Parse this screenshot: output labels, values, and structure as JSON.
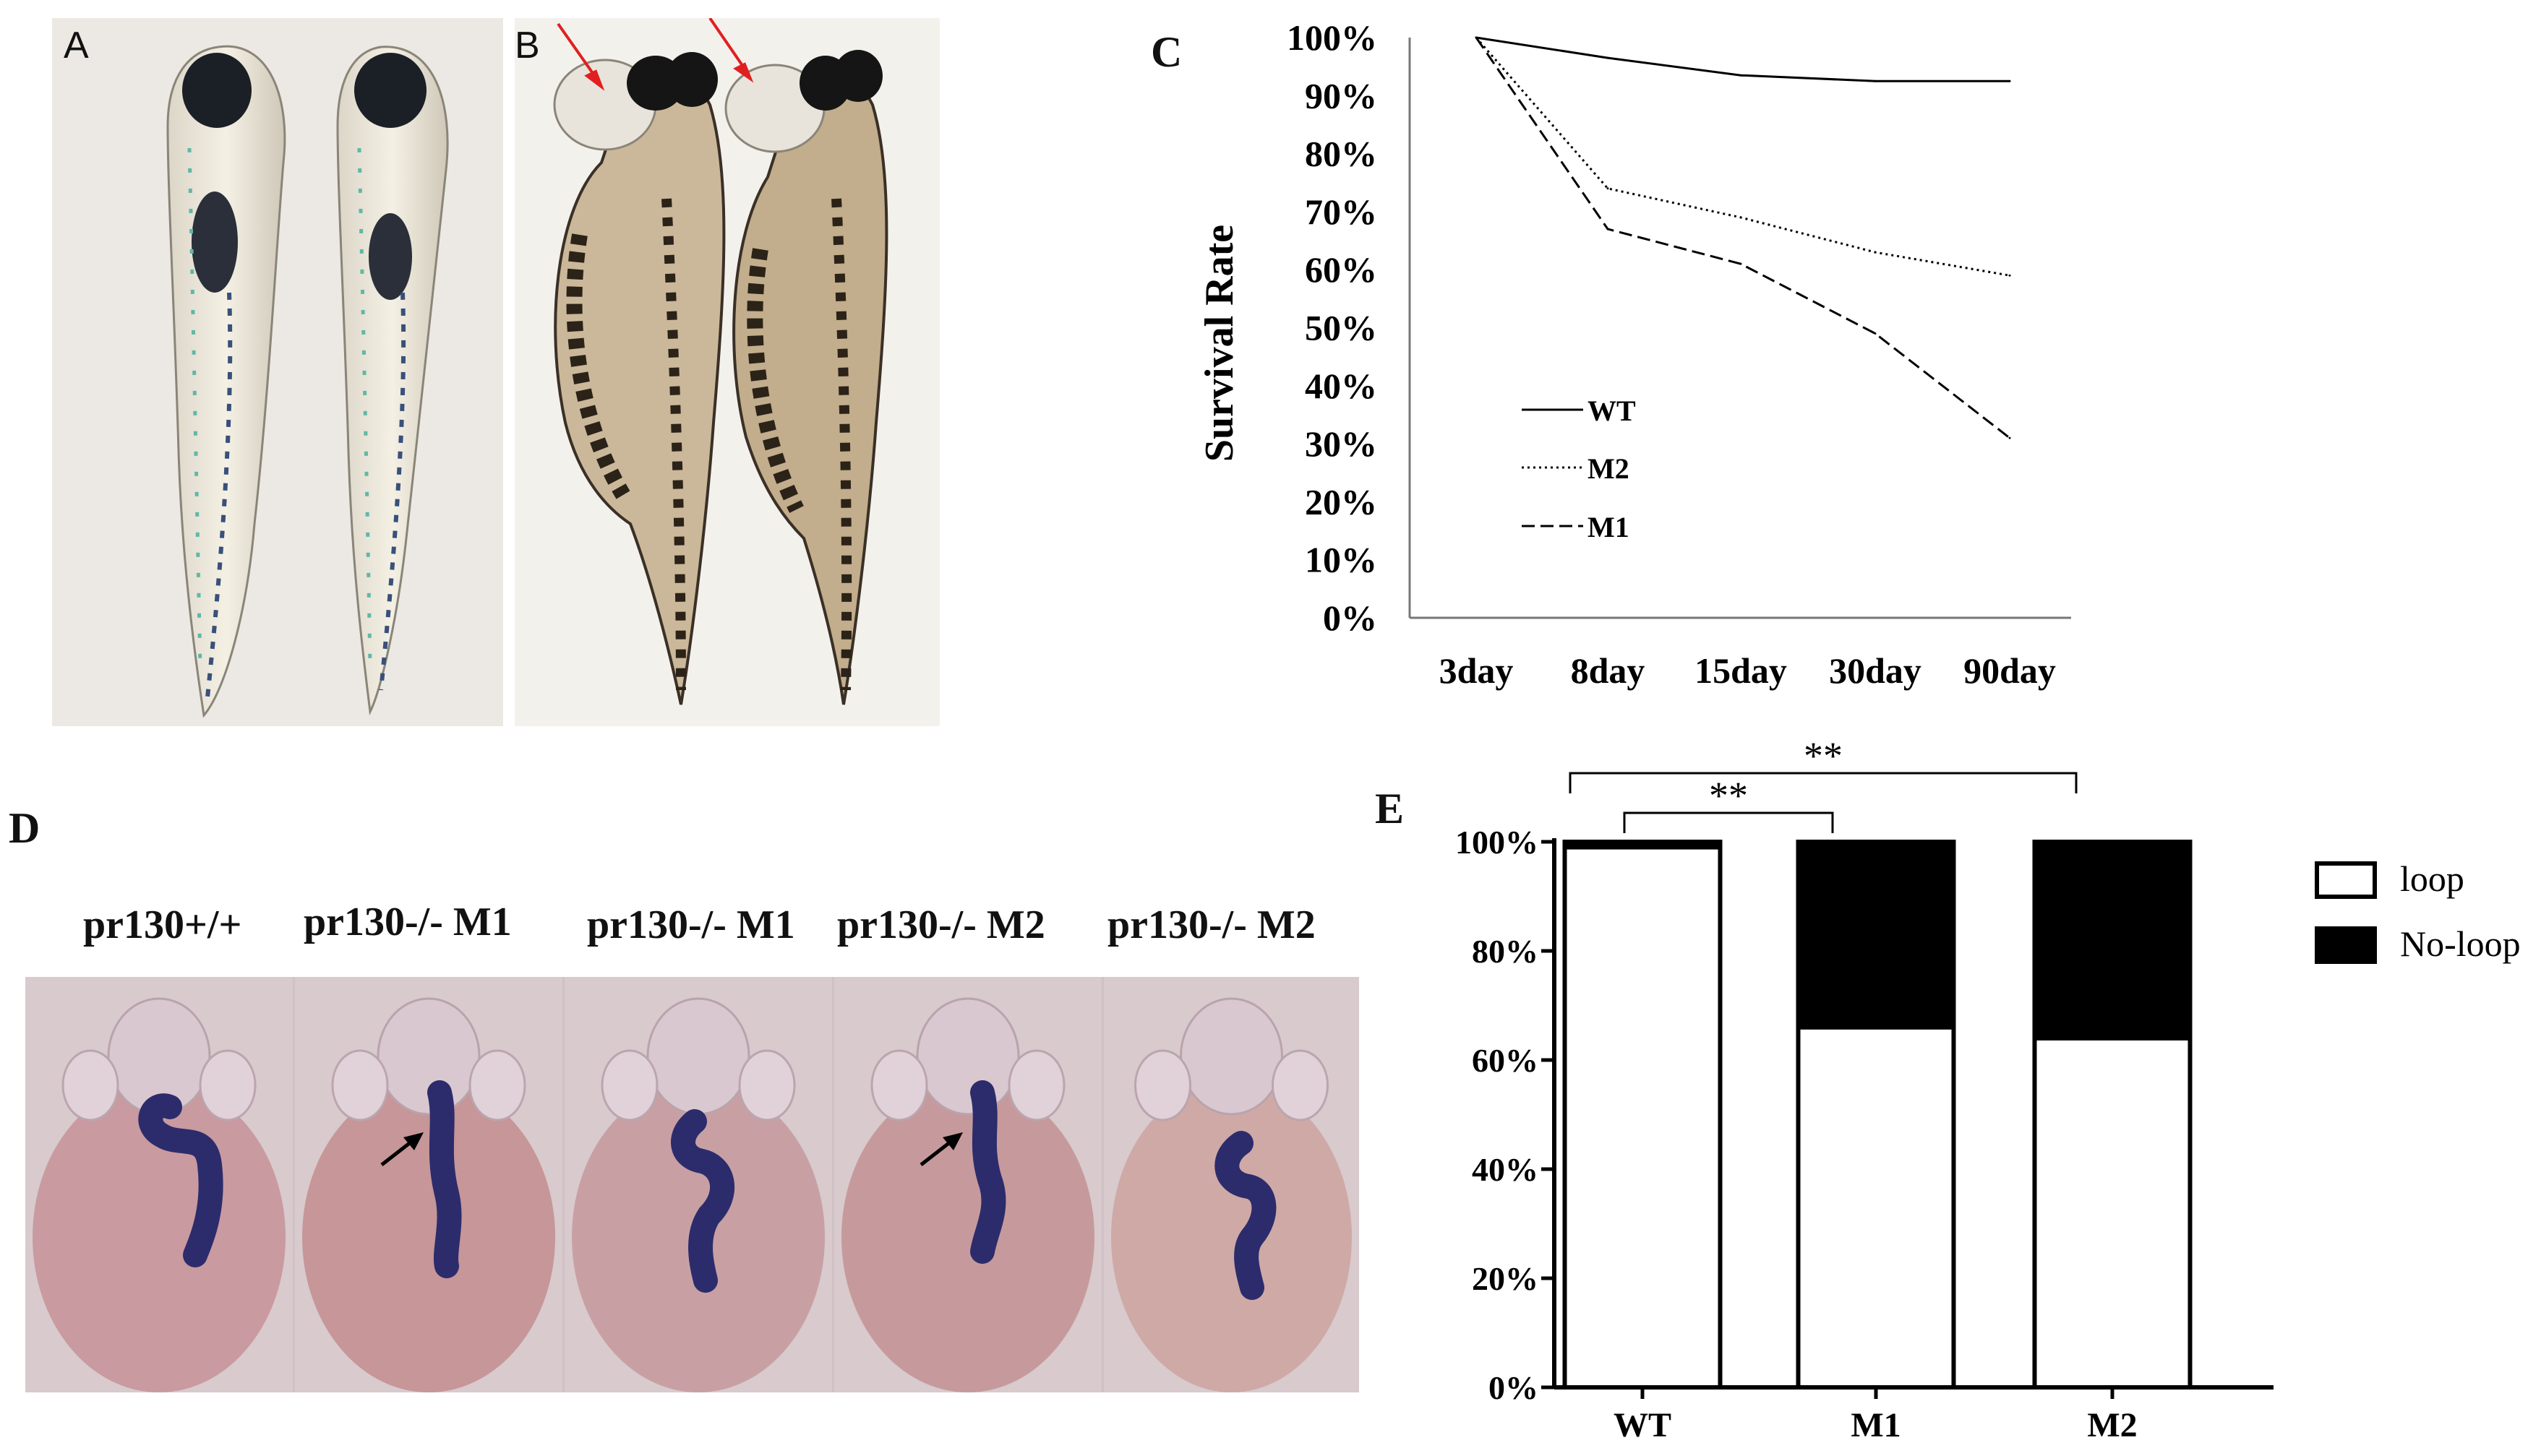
{
  "panels": {
    "a": {
      "label": "A"
    },
    "b": {
      "label": "B"
    },
    "c": {
      "label": "C"
    },
    "d": {
      "label": "D",
      "images": [
        {
          "label": "pr130+/+"
        },
        {
          "label": "pr130-/- M1"
        },
        {
          "label": "pr130-/- M1"
        },
        {
          "label": "pr130-/- M2"
        },
        {
          "label": "pr130-/- M2"
        }
      ]
    },
    "e": {
      "label": "E"
    }
  },
  "chart_data": [
    {
      "panel": "C",
      "type": "line",
      "title": "",
      "xlabel": "",
      "ylabel": "Survival Rate",
      "categories": [
        "3day",
        "8day",
        "15day",
        "30day",
        "90day"
      ],
      "y_ticks": [
        "100%",
        "90%",
        "80%",
        "70%",
        "60%",
        "50%",
        "40%",
        "30%",
        "20%",
        "10%",
        "0%"
      ],
      "ylim": [
        0,
        100
      ],
      "legend_position": "lower-left",
      "series": [
        {
          "name": "WT",
          "style": "solid",
          "values": [
            100,
            96.5,
            93.5,
            92.5,
            92.5
          ]
        },
        {
          "name": "M2",
          "style": "dotted",
          "values": [
            100,
            74,
            69,
            63,
            59
          ]
        },
        {
          "name": "M1",
          "style": "dashed",
          "values": [
            100,
            67,
            61,
            49,
            31
          ]
        }
      ]
    },
    {
      "panel": "E",
      "type": "bar",
      "stacked": true,
      "categories": [
        "WT",
        "M1",
        "M2"
      ],
      "y_ticks": [
        "0%",
        "20%",
        "40%",
        "60%",
        "80%",
        "100%"
      ],
      "ylim": [
        0,
        100
      ],
      "legend_position": "right",
      "series": [
        {
          "name": "loop",
          "color": "#ffffff",
          "values": [
            99,
            66,
            64
          ]
        },
        {
          "name": "No-loop",
          "color": "#000000",
          "values": [
            1,
            34,
            36
          ]
        }
      ],
      "significance": [
        {
          "between": [
            "WT",
            "M1"
          ],
          "label": "**"
        },
        {
          "between": [
            "WT",
            "M2"
          ],
          "label": "**"
        }
      ]
    }
  ],
  "colors": {
    "arrow_red": "#e02020",
    "stain_blue": "#2a2a6a",
    "yolk": "#c79a9c"
  }
}
